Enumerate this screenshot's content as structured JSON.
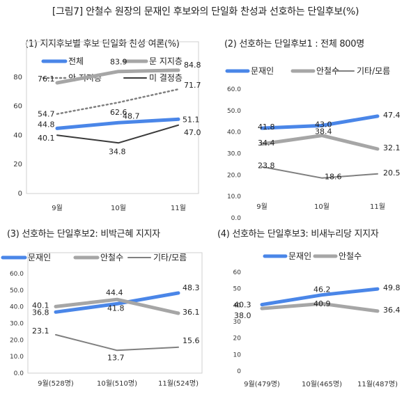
{
  "figure_title": "[그림7] 안철수 원장의 문재인 후보와의 단일화 찬성과 선호하는 단일후보(%)",
  "chart_data": [
    {
      "type": "line",
      "title": "(1) 지지후보별 후보 단일화 찬성 여론(%)",
      "categories": [
        "9월",
        "10월",
        "11월"
      ],
      "ylim": [
        0,
        90
      ],
      "yticks": [
        "0",
        "20",
        "40",
        "60",
        "80"
      ],
      "legend": "top",
      "series": [
        {
          "name": "전체",
          "values": [
            44.8,
            48.7,
            51.1
          ],
          "labels": [
            "44.8",
            "48.7",
            "51.1"
          ],
          "color": "#4a86e8",
          "style": "thick"
        },
        {
          "name": "문 지지층",
          "values": [
            76.1,
            83.9,
            84.8
          ],
          "labels": [
            "76.1",
            "83.9",
            "84.8"
          ],
          "color": "#a6a6a6",
          "style": "thick"
        },
        {
          "name": "안 지지층",
          "values": [
            54.7,
            62.6,
            71.7
          ],
          "labels": [
            "54.7",
            "62.6",
            "71.7"
          ],
          "color": "#7f7f7f",
          "style": "dotted"
        },
        {
          "name": "미 결정층",
          "values": [
            40.1,
            34.8,
            47.0
          ],
          "labels": [
            "40.1",
            "34.8",
            "47.0"
          ],
          "color": "#3a3a3a",
          "style": "thin"
        }
      ]
    },
    {
      "type": "line",
      "title": "(2) 선호하는 단일후보1 : 전체 800명",
      "categories": [
        "9월",
        "10월",
        "11월"
      ],
      "ylim": [
        0,
        60
      ],
      "yticks": [
        "0.0",
        "10.0",
        "20.0",
        "30.0",
        "40.0",
        "50.0",
        "60.0"
      ],
      "legend": "top",
      "series": [
        {
          "name": "문재인",
          "values": [
            41.8,
            43.0,
            47.4
          ],
          "labels": [
            "41.8",
            "43.0",
            "47.4"
          ],
          "color": "#4a86e8",
          "style": "thick"
        },
        {
          "name": "안철수",
          "values": [
            34.4,
            38.4,
            32.1
          ],
          "labels": [
            "34.4",
            "38.4",
            "32.1"
          ],
          "color": "#a6a6a6",
          "style": "thick"
        },
        {
          "name": "기타/모름",
          "values": [
            23.8,
            18.6,
            20.5
          ],
          "labels": [
            "23.8",
            "18.6",
            "20.5"
          ],
          "color": "#7f7f7f",
          "style": "thin"
        }
      ]
    },
    {
      "type": "line",
      "title": "(3) 선호하는 단일후보2: 비박근혜 지지자",
      "categories": [
        "9월(528명)",
        "10월(510명)",
        "11월(524명)"
      ],
      "ylim": [
        0,
        60
      ],
      "yticks": [
        "0.0",
        "10.0",
        "20.0",
        "30.0",
        "40.0",
        "50.0",
        "60.0"
      ],
      "legend": "top",
      "series": [
        {
          "name": "문재인",
          "values": [
            36.8,
            41.8,
            48.3
          ],
          "labels": [
            "36.8",
            "41.8",
            "48.3"
          ],
          "color": "#4a86e8",
          "style": "thick"
        },
        {
          "name": "안철수",
          "values": [
            40.1,
            44.4,
            36.1
          ],
          "labels": [
            "40.1",
            "44.4",
            "36.1"
          ],
          "color": "#a6a6a6",
          "style": "thick"
        },
        {
          "name": "기타/모름",
          "values": [
            23.1,
            13.7,
            15.6
          ],
          "labels": [
            "23.1",
            "13.7",
            "15.6"
          ],
          "color": "#7f7f7f",
          "style": "thin"
        }
      ]
    },
    {
      "type": "line",
      "title": "(4) 선호하는 단일후보3: 비새누리당 지지자",
      "categories": [
        "9월(479명)",
        "10월(465명)",
        "11월(487명)"
      ],
      "ylim": [
        0,
        60
      ],
      "yticks": [
        "0",
        "10",
        "20",
        "30",
        "40",
        "50",
        "60"
      ],
      "legend": "top",
      "series": [
        {
          "name": "문재인",
          "values": [
            40.3,
            46.2,
            49.8
          ],
          "labels": [
            "40.3",
            "46.2",
            "49.8"
          ],
          "color": "#4a86e8",
          "style": "thick"
        },
        {
          "name": "안철수",
          "values": [
            38.0,
            40.9,
            36.4
          ],
          "labels": [
            "38.0",
            "40.9",
            "36.4"
          ],
          "color": "#a6a6a6",
          "style": "thick"
        }
      ]
    }
  ]
}
